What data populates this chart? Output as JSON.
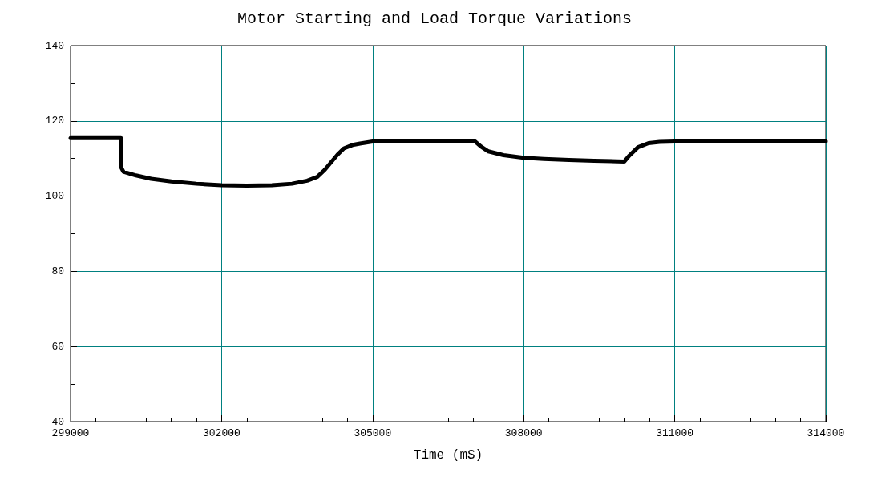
{
  "chart_data": {
    "type": "line",
    "title": "Motor Starting and Load Torque Variations",
    "xlabel": "Time (mS)",
    "series": [
      {
        "color": "#000000",
        "x": [
          299000,
          299500,
          300000,
          300010,
          300050,
          300300,
          300600,
          301000,
          301500,
          302000,
          302500,
          303000,
          303400,
          303700,
          303900,
          304050,
          304200,
          304300,
          304430,
          304600,
          304750,
          305000,
          305500,
          306000,
          306500,
          307000,
          307030,
          307150,
          307300,
          307600,
          308000,
          308400,
          308900,
          309400,
          310000,
          310100,
          310270,
          310480,
          310700,
          311000,
          312000,
          313000,
          314000
        ],
        "values": [
          115.4,
          115.4,
          115.4,
          107.5,
          106.5,
          105.5,
          104.6,
          103.9,
          103.3,
          102.9,
          102.8,
          102.9,
          103.3,
          104.1,
          105.1,
          107,
          109.4,
          111,
          112.7,
          113.6,
          114,
          114.5,
          114.6,
          114.6,
          114.6,
          114.6,
          114.6,
          113.2,
          111.9,
          110.9,
          110.2,
          109.9,
          109.6,
          109.4,
          109.2,
          110.8,
          113,
          114.1,
          114.4,
          114.5,
          114.6,
          114.6,
          114.6
        ]
      }
    ],
    "xlim": [
      299000,
      314000
    ],
    "xticks": [
      299000,
      302000,
      305000,
      308000,
      311000,
      314000
    ],
    "ylim": [
      40,
      140
    ],
    "yticks": [
      40,
      60,
      80,
      100,
      120,
      140
    ],
    "grid": true,
    "marker": "none",
    "line_style": "solid"
  }
}
